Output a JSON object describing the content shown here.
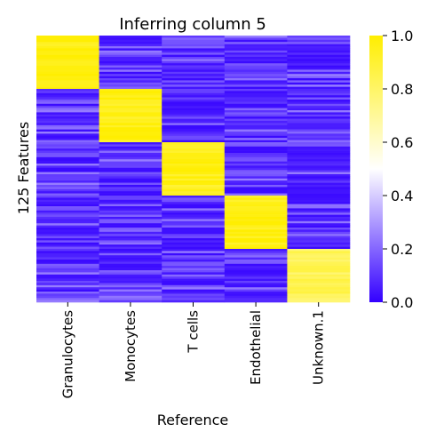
{
  "chart_data": {
    "type": "heatmap",
    "title": "Inferring column 5",
    "xlabel": "Reference",
    "ylabel": "125 Features",
    "columns": [
      "Granulocytes",
      "Monocytes",
      "T cells",
      "Endothelial",
      "Unknown.1"
    ],
    "row_count": 125,
    "blocks": [
      {
        "rows": [
          0,
          24
        ],
        "high_column": "Granulocytes",
        "value": 0.97
      },
      {
        "rows": [
          25,
          49
        ],
        "high_column": "Monocytes",
        "value": 0.95
      },
      {
        "rows": [
          50,
          74
        ],
        "high_column": "T cells",
        "value": 0.95
      },
      {
        "rows": [
          75,
          99
        ],
        "high_column": "Endothelial",
        "value": 0.97
      },
      {
        "rows": [
          100,
          124
        ],
        "high_column": "Unknown.1",
        "value": 0.82
      }
    ],
    "background_range": [
      0.02,
      0.25
    ],
    "colorbar": {
      "min": 0.0,
      "max": 1.0,
      "ticks": [
        "0.0",
        "0.2",
        "0.4",
        "0.6",
        "0.8",
        "1.0"
      ],
      "colors": [
        "#3300ff",
        "#ffffff",
        "#ffee00"
      ]
    }
  }
}
